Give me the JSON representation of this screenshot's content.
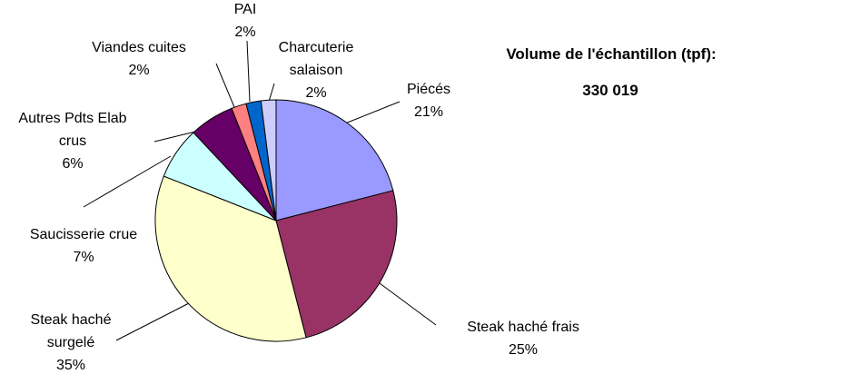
{
  "chart_data": {
    "type": "pie",
    "categories": [
      "Piécés",
      "Steak haché frais",
      "Steak haché surgelé",
      "Saucisserie crue",
      "Autres Pdts Elab crus",
      "Viandes cuites",
      "PAI",
      "Charcuterie salaison"
    ],
    "values": [
      21,
      25,
      35,
      7,
      6,
      2,
      2,
      2
    ],
    "value_labels": [
      "21%",
      "25%",
      "35%",
      "7%",
      "6%",
      "2%",
      "2%",
      "2%"
    ],
    "colors": [
      "#9999ff",
      "#993366",
      "#ffffcc",
      "#ccffff",
      "#660066",
      "#ff8080",
      "#0066cc",
      "#ccccff"
    ],
    "annotation_title": "Volume de l'échantillon (tpf):",
    "annotation_value": "330 019"
  }
}
